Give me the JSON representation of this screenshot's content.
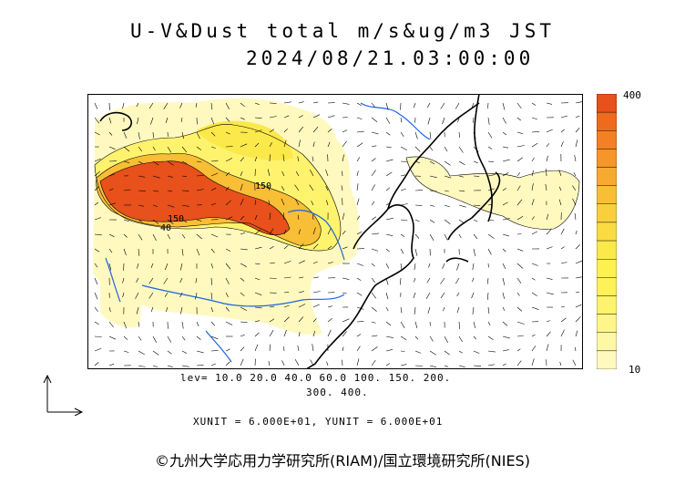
{
  "title_line1": "U-V&Dust total m/s&ug/m3 JST",
  "title_line2": "2024/08/21.03:00:00",
  "colorbar": {
    "max_label": "400",
    "min_label": "10",
    "colors_top_to_bottom": [
      "#e8501c",
      "#f06a1e",
      "#f38024",
      "#f5952a",
      "#f6aa30",
      "#f8be36",
      "#f9d03c",
      "#fadc42",
      "#fbe84a",
      "#fdf050",
      "#fff158",
      "#fff36e",
      "#fff58a",
      "#fff7a6",
      "#fff9c0"
    ]
  },
  "contour_labels": [
    "150",
    "150",
    "40"
  ],
  "levels_line1": "lev= 10.0 20.0 40.0 60.0 100. 150. 200.",
  "levels_line2": "300. 400.",
  "units_line": "XUNIT = 6.000E+01, YUNIT = 6.000E+01",
  "credit": "©九州大学応用力学研究所(RIAM)/国立環境研究所(NIES)"
}
